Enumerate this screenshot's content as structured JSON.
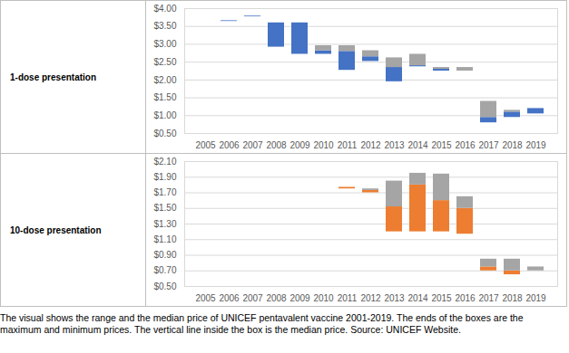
{
  "chart_data": [
    {
      "type": "range_bar",
      "title": "1-dose presentation",
      "categories": [
        "2005",
        "2006",
        "2007",
        "2008",
        "2009",
        "2010",
        "2011",
        "2012",
        "2013",
        "2014",
        "2015",
        "2016",
        "2017",
        "2018",
        "2019"
      ],
      "min": [
        null,
        3.64,
        3.77,
        2.92,
        2.72,
        2.72,
        2.27,
        2.52,
        1.95,
        2.37,
        2.25,
        2.25,
        0.8,
        0.95,
        1.05
      ],
      "median": [
        null,
        3.66,
        3.79,
        3.6,
        3.6,
        2.82,
        2.8,
        2.65,
        2.35,
        2.4,
        2.3,
        2.25,
        0.95,
        1.1,
        1.2
      ],
      "max": [
        null,
        3.66,
        3.79,
        3.6,
        3.6,
        2.96,
        2.96,
        2.82,
        2.62,
        2.72,
        2.35,
        2.35,
        1.4,
        1.15,
        1.2
      ],
      "colors": [
        "#4472c4",
        "#a5a5a5"
      ],
      "ylim": [
        0.5,
        4.0
      ],
      "yticks": [
        {
          "value": 0.5,
          "label": "$0.50"
        },
        {
          "value": 1.0,
          "label": "$1.00"
        },
        {
          "value": 1.5,
          "label": "$1.50"
        },
        {
          "value": 2.0,
          "label": "$2.00"
        },
        {
          "value": 2.5,
          "label": "$2.50"
        },
        {
          "value": 3.0,
          "label": "$3.00"
        },
        {
          "value": 3.5,
          "label": "$3.50"
        },
        {
          "value": 4.0,
          "label": "$4.00"
        }
      ],
      "grid": true
    },
    {
      "type": "range_bar",
      "title": "10-dose presentation",
      "categories": [
        "2005",
        "2006",
        "2007",
        "2008",
        "2009",
        "2010",
        "2011",
        "2012",
        "2013",
        "2014",
        "2015",
        "2016",
        "2017",
        "2018",
        "2019"
      ],
      "min": [
        null,
        null,
        null,
        null,
        null,
        null,
        1.75,
        1.7,
        1.2,
        1.2,
        1.2,
        1.17,
        0.7,
        0.65,
        0.7
      ],
      "median": [
        null,
        null,
        null,
        null,
        null,
        null,
        1.77,
        1.73,
        1.52,
        1.8,
        1.6,
        1.5,
        0.75,
        0.7,
        0.7
      ],
      "max": [
        null,
        null,
        null,
        null,
        null,
        null,
        1.77,
        1.75,
        1.85,
        1.95,
        1.94,
        1.65,
        0.85,
        0.85,
        0.75
      ],
      "colors": [
        "#ed7d31",
        "#a5a5a5"
      ],
      "ylim": [
        0.5,
        2.1
      ],
      "yticks": [
        {
          "value": 0.5,
          "label": "$0.50"
        },
        {
          "value": 0.7,
          "label": "$0.70"
        },
        {
          "value": 0.9,
          "label": "$0.90"
        },
        {
          "value": 1.1,
          "label": "$1.10"
        },
        {
          "value": 1.3,
          "label": "$1.30"
        },
        {
          "value": 1.5,
          "label": "$1.50"
        },
        {
          "value": 1.7,
          "label": "$1.70"
        },
        {
          "value": 1.9,
          "label": "$1.90"
        },
        {
          "value": 2.1,
          "label": "$2.10"
        }
      ],
      "grid": true
    }
  ],
  "caption": "The visual shows the range and the median price of UNICEF pentavalent vaccine 2001-2019. The ends of the boxes are the maximum and minimum prices. The vertical line inside the box is the median price. Source: UNICEF Website."
}
